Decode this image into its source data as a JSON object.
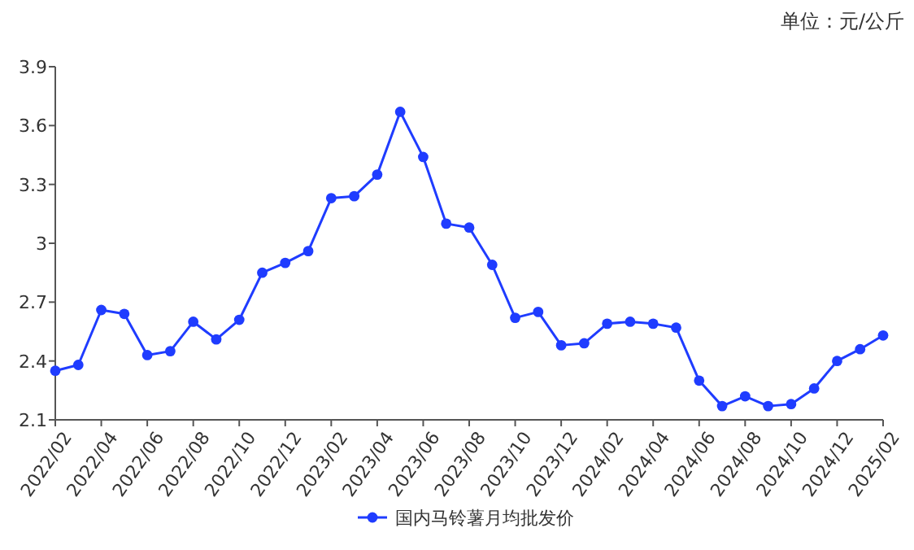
{
  "chart_data": {
    "type": "line",
    "categories": [
      "2022/02",
      null,
      "2022/04",
      null,
      "2022/06",
      null,
      "2022/08",
      null,
      "2022/10",
      null,
      "2022/12",
      null,
      "2023/02",
      null,
      "2023/04",
      null,
      "2023/06",
      null,
      "2023/08",
      null,
      "2023/10",
      null,
      "2023/12",
      null,
      "2024/02",
      null,
      "2024/04",
      null,
      "2024/06",
      null,
      "2024/08",
      null,
      "2024/10",
      null,
      "2024/12",
      null,
      "2025/02"
    ],
    "series": [
      {
        "name": "国内马铃薯月均批发价",
        "color": "#1f3cff",
        "values": [
          2.35,
          2.38,
          2.66,
          2.64,
          2.43,
          2.45,
          2.6,
          2.51,
          2.61,
          2.85,
          2.9,
          2.96,
          3.23,
          3.24,
          3.35,
          3.67,
          3.44,
          3.1,
          3.08,
          2.89,
          2.62,
          2.65,
          2.48,
          2.49,
          2.59,
          2.6,
          2.59,
          2.57,
          2.3,
          2.17,
          2.22,
          2.17,
          2.18,
          2.26,
          2.4,
          2.46,
          2.53
        ]
      }
    ],
    "ylim": [
      2.1,
      3.9
    ],
    "yticks": [
      2.1,
      2.4,
      2.7,
      3,
      3.3,
      3.6,
      3.9
    ],
    "annotations": [
      "单位：元/公斤"
    ],
    "legend": "bottom",
    "marker": "circle",
    "line_style": "solid",
    "grid": false
  }
}
